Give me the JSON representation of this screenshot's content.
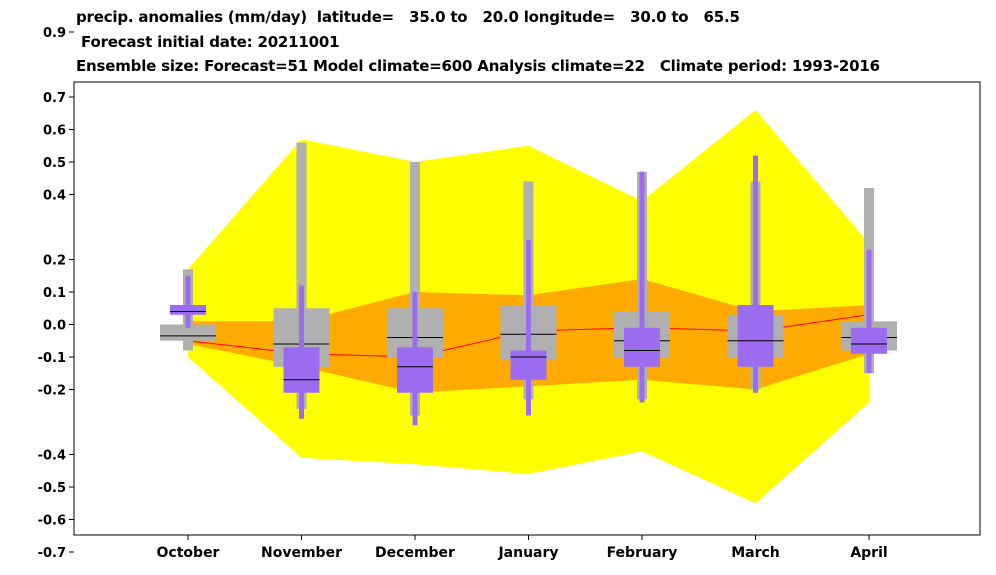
{
  "title_lines": [
    "precip. anomalies (mm/day)  latitude=   35.0 to   20.0 longitude=   30.0 to   65.5",
    " Forecast initial date: 20211001",
    "Ensemble size: Forecast=51 Model climate=600 Analysis climate=22   Climate period: 1993-2016"
  ],
  "chart_data": {
    "type": "box",
    "categories": [
      "October",
      "November",
      "December",
      "January",
      "February",
      "March",
      "April"
    ],
    "ylim": [
      -0.78,
      0.96
    ],
    "yticks": [
      0.9,
      0.7,
      0.6,
      0.5,
      0.4,
      0.2,
      0.1,
      0.0,
      -0.1,
      -0.2,
      -0.4,
      -0.5,
      -0.6,
      -0.7
    ],
    "ytick_labels": [
      "0.9",
      "0.7",
      "0.6",
      "0.5",
      "0.4",
      "0.2",
      "0.1",
      "0.0",
      "-0.1",
      "-0.2",
      "-0.4",
      "-0.5",
      "-0.6",
      "-0.7"
    ],
    "colors": {
      "climate_outer_band": "#ffff00",
      "climate_inner_band": "#ffaa00",
      "climate_median_line": "#ff0000",
      "model_climate_box": "#b0b0b0",
      "forecast_box": "#9b6cf0",
      "median_marker": "#000000"
    },
    "analysis_climate": {
      "outer_max": [
        0.17,
        0.57,
        0.5,
        0.55,
        0.38,
        0.66,
        0.25
      ],
      "outer_min": [
        -0.1,
        -0.41,
        -0.43,
        -0.46,
        -0.39,
        -0.55,
        -0.24
      ],
      "inner_max": [
        0.01,
        0.01,
        0.1,
        0.09,
        0.14,
        0.04,
        0.06
      ],
      "inner_min": [
        -0.06,
        -0.13,
        -0.21,
        -0.19,
        -0.17,
        -0.2,
        -0.09
      ],
      "median": [
        -0.05,
        -0.09,
        -0.1,
        -0.02,
        -0.01,
        -0.02,
        0.03
      ]
    },
    "model_climate": {
      "max": [
        0.17,
        0.56,
        0.5,
        0.44,
        0.47,
        0.44,
        0.42
      ],
      "p90": [
        0.0,
        0.05,
        0.05,
        0.06,
        0.04,
        0.03,
        0.01
      ],
      "median": [
        -0.035,
        -0.06,
        -0.04,
        -0.03,
        -0.05,
        -0.05,
        -0.04
      ],
      "p10": [
        -0.05,
        -0.13,
        -0.1,
        -0.11,
        -0.1,
        -0.1,
        -0.08
      ],
      "min": [
        -0.08,
        -0.26,
        -0.28,
        -0.23,
        -0.23,
        -0.2,
        -0.15
      ]
    },
    "forecast": {
      "max": [
        0.15,
        0.12,
        0.1,
        0.26,
        0.47,
        0.52,
        0.23
      ],
      "p66": [
        0.06,
        -0.07,
        -0.07,
        -0.08,
        -0.01,
        0.06,
        -0.01
      ],
      "median": [
        0.04,
        -0.17,
        -0.13,
        -0.1,
        -0.08,
        -0.05,
        -0.06
      ],
      "p33": [
        0.03,
        -0.21,
        -0.21,
        -0.17,
        -0.13,
        -0.13,
        -0.09
      ],
      "min": [
        -0.01,
        -0.29,
        -0.31,
        -0.28,
        -0.24,
        -0.21,
        -0.15
      ]
    }
  }
}
